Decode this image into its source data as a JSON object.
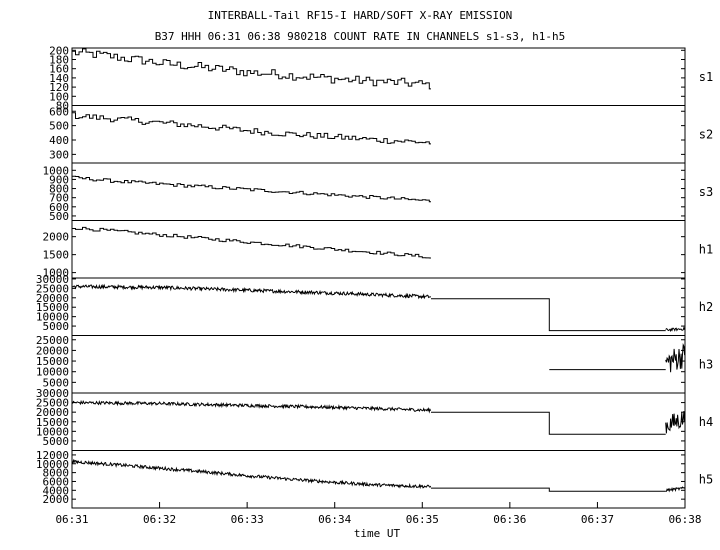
{
  "chart_data": {
    "type": "line",
    "title": "INTERBALL-Tail RF15-I HARD/SOFT X-RAY EMISSION",
    "subtitle": "B37 HHH 06:31 06:38 980218  COUNT RATE IN CHANNELS s1-s3, h1-h5",
    "xlabel": "time UT",
    "x_ticks": [
      "06:31",
      "06:32",
      "06:33",
      "06:34",
      "06:35",
      "06:36",
      "06:37",
      "06:38"
    ],
    "x_range_minutes": [
      0,
      7
    ],
    "grid": false,
    "panels": [
      {
        "name": "s1",
        "ylim": [
          80,
          205
        ],
        "yticks": [
          80,
          100,
          120,
          140,
          160,
          180,
          200
        ],
        "style": "step",
        "segments": [
          {
            "x": [
              0,
              0.2,
              0.4,
              0.6,
              0.8,
              1.0,
              1.2,
              1.4,
              1.6,
              1.8,
              2.0,
              2.2,
              2.4,
              2.6,
              2.8,
              3.0,
              3.2,
              3.4,
              3.6,
              3.8,
              4.0,
              4.1
            ],
            "y": [
              195,
              192,
              188,
              182,
              178,
              172,
              168,
              165,
              160,
              157,
              152,
              150,
              147,
              144,
              141,
              138,
              135,
              133,
              131,
              129,
              126,
              124
            ],
            "noise": 10
          }
        ]
      },
      {
        "name": "s2",
        "ylim": [
          240,
          640
        ],
        "yticks": [
          300,
          400,
          500,
          600
        ],
        "style": "step",
        "segments": [
          {
            "x": [
              0,
              0.5,
              1.0,
              1.5,
              2.0,
              2.5,
              3.0,
              3.5,
              4.0,
              4.1
            ],
            "y": [
              570,
              545,
              520,
              495,
              465,
              440,
              420,
              400,
              385,
              380
            ],
            "noise": 22
          }
        ]
      },
      {
        "name": "s3",
        "ylim": [
          450,
          1080
        ],
        "yticks": [
          500,
          600,
          700,
          800,
          900,
          1000
        ],
        "style": "step",
        "segments": [
          {
            "x": [
              0,
              0.5,
              1.0,
              1.5,
              2.0,
              2.5,
              3.0,
              3.5,
              4.0,
              4.1
            ],
            "y": [
              920,
              880,
              850,
              820,
              790,
              760,
              730,
              700,
              670,
              660
            ],
            "noise": 18
          }
        ]
      },
      {
        "name": "h1",
        "ylim": [
          850,
          2450
        ],
        "yticks": [
          1000,
          1500,
          2000
        ],
        "style": "step",
        "segments": [
          {
            "x": [
              0,
              0.5,
              1.0,
              1.5,
              2.0,
              2.5,
              3.0,
              3.5,
              4.0,
              4.1
            ],
            "y": [
              2250,
              2150,
              2050,
              1950,
              1850,
              1750,
              1650,
              1550,
              1450,
              1380
            ],
            "noise": 45
          }
        ]
      },
      {
        "name": "h2",
        "ylim": [
          0,
          30500
        ],
        "yticks": [
          5000,
          10000,
          15000,
          20000,
          25000,
          30000
        ],
        "style": "noisy",
        "segments": [
          {
            "x": [
              0,
              1.0,
              2.0,
              3.0,
              4.1
            ],
            "y": [
              26000,
              25500,
              24000,
              22500,
              20500
            ],
            "noise": 900
          },
          {
            "x": [
              4.1,
              5.45,
              5.45,
              6.78
            ],
            "y": [
              19500,
              19500,
              2600,
              2600
            ],
            "noise": 0
          },
          {
            "x": [
              6.78,
              7.0
            ],
            "y": [
              3000,
              3500
            ],
            "noise": 700
          }
        ]
      },
      {
        "name": "h3",
        "ylim": [
          0,
          27000
        ],
        "yticks": [
          5000,
          10000,
          15000,
          20000,
          25000
        ],
        "style": "noisy",
        "segments": [
          {
            "x": [
              5.45,
              6.78
            ],
            "y": [
              11000,
              11000
            ],
            "noise": 0
          },
          {
            "x": [
              6.78,
              7.0
            ],
            "y": [
              14000,
              18000
            ],
            "noise": 6000
          }
        ]
      },
      {
        "name": "h4",
        "ylim": [
          0,
          30000
        ],
        "yticks": [
          5000,
          10000,
          15000,
          20000,
          25000,
          30000
        ],
        "style": "noisy",
        "segments": [
          {
            "x": [
              0,
              1.0,
              2.0,
              3.0,
              4.1
            ],
            "y": [
              25000,
              24500,
              23500,
              22500,
              21000
            ],
            "noise": 800
          },
          {
            "x": [
              4.1,
              5.45,
              5.45,
              6.78
            ],
            "y": [
              20000,
              20000,
              8500,
              8500
            ],
            "noise": 0
          },
          {
            "x": [
              6.78,
              7.0
            ],
            "y": [
              13000,
              17000
            ],
            "noise": 5000
          }
        ]
      },
      {
        "name": "h5",
        "ylim": [
          0,
          13000
        ],
        "yticks": [
          2000,
          4000,
          6000,
          8000,
          10000,
          12000
        ],
        "style": "noisy",
        "segments": [
          {
            "x": [
              0,
              0.5,
              1.0,
              1.5,
              2.0,
              2.5,
              3.0,
              3.5,
              4.0,
              4.1
            ],
            "y": [
              10500,
              9800,
              9000,
              8200,
              7300,
              6500,
              5800,
              5200,
              4900,
              4800
            ],
            "noise": 350
          },
          {
            "x": [
              4.1,
              5.45,
              5.45,
              6.78
            ],
            "y": [
              4500,
              4500,
              3800,
              3800
            ],
            "noise": 0
          },
          {
            "x": [
              6.78,
              7.0
            ],
            "y": [
              4000,
              4500
            ],
            "noise": 300
          }
        ]
      }
    ]
  }
}
